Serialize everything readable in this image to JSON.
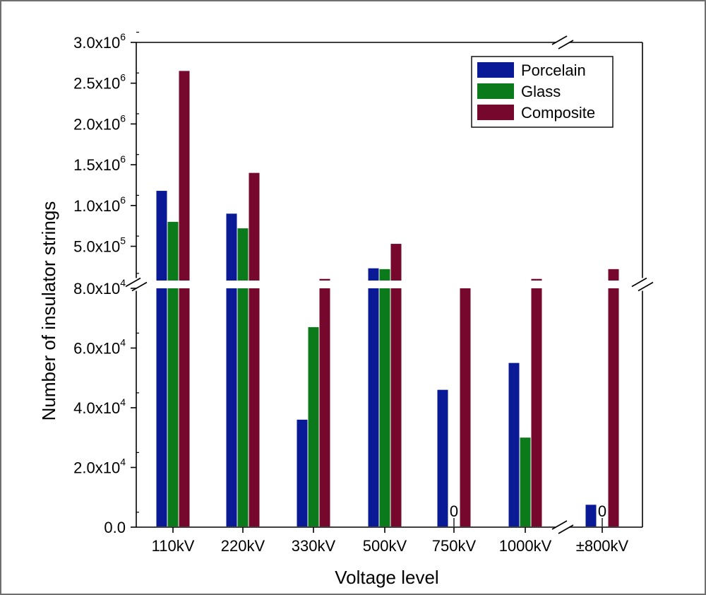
{
  "chart_data": {
    "type": "bar",
    "xlabel": "Voltage level",
    "ylabel": "Number of insulator strings",
    "categories": [
      "110kV",
      "220kV",
      "330kV",
      "500kV",
      "750kV",
      "1000kV",
      "±800kV"
    ],
    "series": [
      {
        "name": "Porcelain",
        "values": [
          1180000,
          900000,
          36000,
          230000,
          46000,
          55000,
          7500
        ]
      },
      {
        "name": "Glass",
        "values": [
          800000,
          720000,
          67000,
          220000,
          0,
          30000,
          0
        ]
      },
      {
        "name": "Composite",
        "values": [
          2650000,
          1400000,
          100000,
          530000,
          80000,
          100000,
          220000
        ]
      }
    ],
    "colors": {
      "Porcelain": "#0a1a96",
      "Glass": "#0a7a1a",
      "Composite": "#76082d"
    },
    "zero_labels": [
      {
        "category": "750kV",
        "series": "Glass",
        "text": "0"
      },
      {
        "category": "±800kV",
        "series": "Glass",
        "text": "0"
      }
    ],
    "axis_break_y": {
      "lower_range": [
        0,
        80000
      ],
      "upper_range": [
        80000,
        3000000
      ]
    },
    "lower_ticks": [
      {
        "value": 0,
        "mantissa": "0.0",
        "exp": ""
      },
      {
        "value": 20000,
        "mantissa": "2.0x10",
        "exp": "4"
      },
      {
        "value": 40000,
        "mantissa": "4.0x10",
        "exp": "4"
      },
      {
        "value": 60000,
        "mantissa": "6.0x10",
        "exp": "4"
      },
      {
        "value": 80000,
        "mantissa": "8.0x10",
        "exp": "4"
      }
    ],
    "upper_ticks": [
      {
        "value": 500000,
        "mantissa": "5.0x10",
        "exp": "5"
      },
      {
        "value": 1000000,
        "mantissa": "1.0x10",
        "exp": "6"
      },
      {
        "value": 1500000,
        "mantissa": "1.5x10",
        "exp": "6"
      },
      {
        "value": 2000000,
        "mantissa": "2.0x10",
        "exp": "6"
      },
      {
        "value": 2500000,
        "mantissa": "2.5x10",
        "exp": "6"
      },
      {
        "value": 3000000,
        "mantissa": "3.0x10",
        "exp": "6"
      }
    ],
    "axis_break_x": "between 1000kV and ±800kV",
    "legend_position": "top-right",
    "grid": false
  }
}
